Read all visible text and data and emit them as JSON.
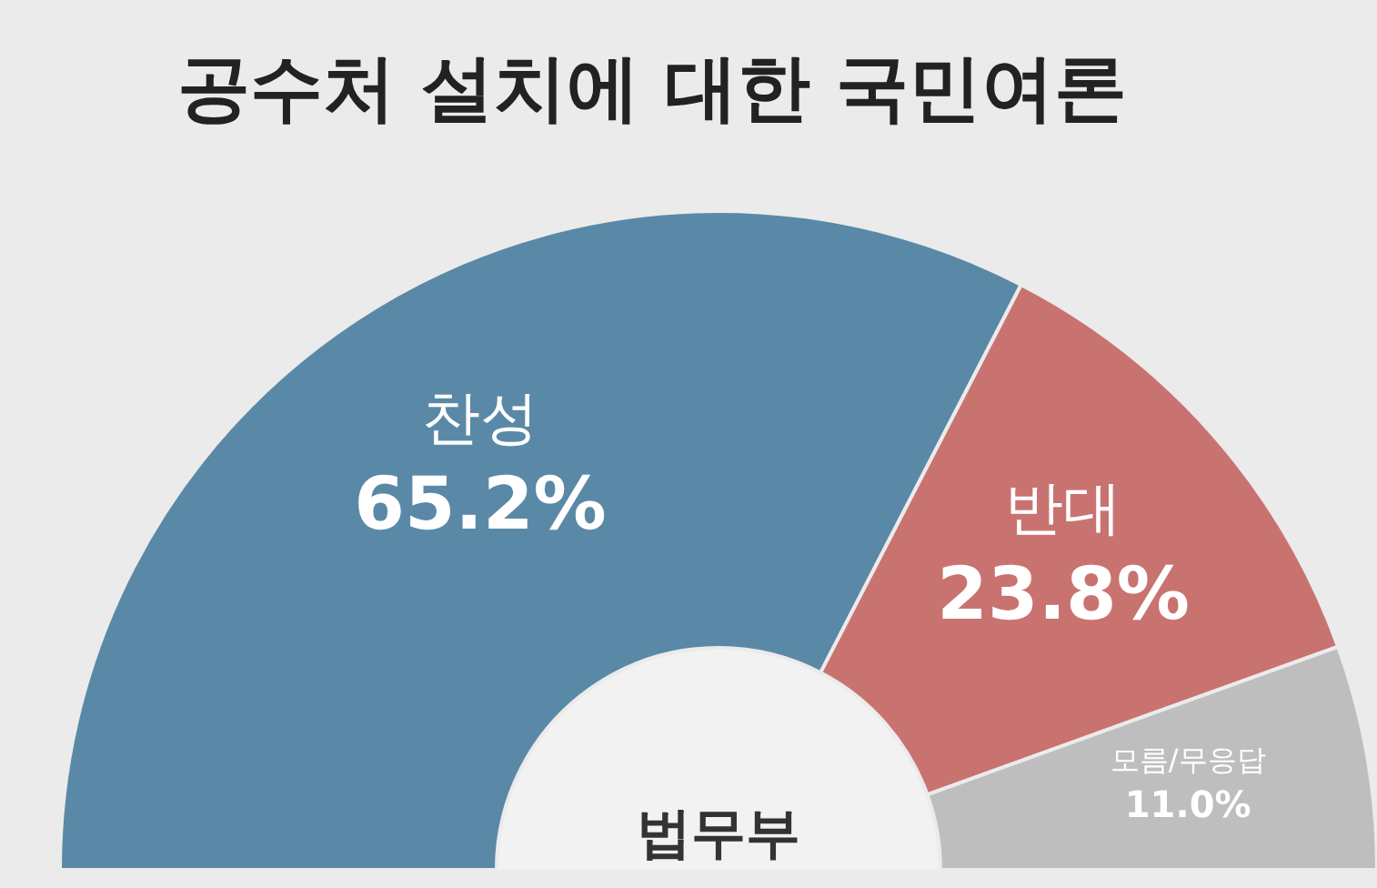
{
  "chart_data": {
    "type": "donut",
    "title": "공수처 설치에 대한 국민여론",
    "categories": [
      "찬성",
      "반대",
      "모름/무응답"
    ],
    "values": [
      65.2,
      23.8,
      11.0
    ],
    "value_labels": [
      "65.2%",
      "23.8%",
      "11.0%"
    ],
    "colors": [
      "#5a89a7",
      "#c97371",
      "#bebebe"
    ],
    "legend": false,
    "annotations": [
      "법무부"
    ]
  }
}
